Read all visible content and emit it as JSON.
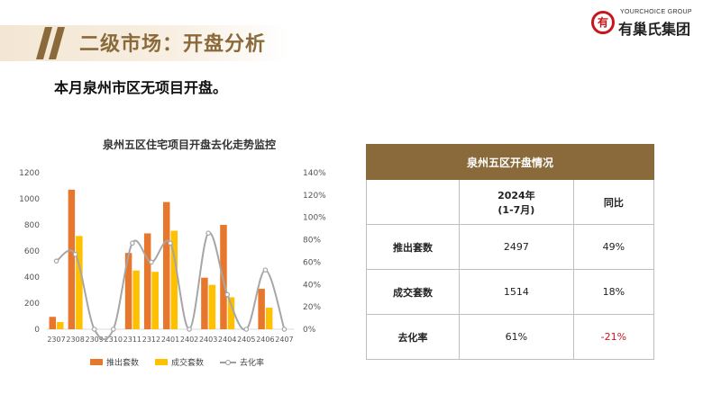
{
  "header": {
    "title": "二级市场：开盘分析"
  },
  "logo": {
    "mark": "有",
    "en": "YOURCHOICE GROUP",
    "cn": "有巢氏集团"
  },
  "subtitle": "本月泉州市区无项目开盘。",
  "table": {
    "caption": "泉州五区开盘情况",
    "col_headers": [
      "2024年\n(1-7月)",
      "同比"
    ],
    "rows": [
      {
        "label": "推出套数",
        "value": "2497",
        "yoy": "49%"
      },
      {
        "label": "成交套数",
        "value": "1514",
        "yoy": "18%"
      },
      {
        "label": "去化率",
        "value": "61%",
        "yoy": "-21%"
      }
    ]
  },
  "colors": {
    "supply": "#e8772e",
    "deal": "#ffc000",
    "rate": "#a6a6a6",
    "brand": "#8a6a3a",
    "negative": "#c8161d"
  },
  "chart_data": {
    "type": "bar",
    "title": "泉州五区住宅项目开盘去化走势监控",
    "categories": [
      "2307",
      "2308",
      "2309",
      "2310",
      "2311",
      "2312",
      "2401",
      "2402",
      "2403",
      "2404",
      "2405",
      "2406",
      "2407"
    ],
    "series": [
      {
        "name": "推出套数",
        "type": "bar",
        "axis": "left",
        "values": [
          95,
          1070,
          0,
          0,
          585,
          735,
          975,
          0,
          395,
          800,
          0,
          310,
          0
        ]
      },
      {
        "name": "成交套数",
        "type": "bar",
        "axis": "left",
        "values": [
          55,
          715,
          0,
          0,
          450,
          440,
          755,
          0,
          340,
          245,
          0,
          165,
          0
        ]
      },
      {
        "name": "去化率",
        "type": "line",
        "axis": "right",
        "values": [
          0.61,
          0.67,
          0,
          0,
          0.77,
          0.6,
          0.77,
          0,
          0.86,
          0.31,
          0,
          0.53,
          0
        ]
      }
    ],
    "ylim": [
      0,
      1200
    ],
    "yticks": [
      "0",
      "200",
      "400",
      "600",
      "800",
      "1000",
      "1200"
    ],
    "y2lim": [
      0,
      1.4
    ],
    "y2ticks": [
      "0%",
      "20%",
      "40%",
      "60%",
      "80%",
      "100%",
      "120%",
      "140%"
    ],
    "legend_position": "bottom"
  }
}
